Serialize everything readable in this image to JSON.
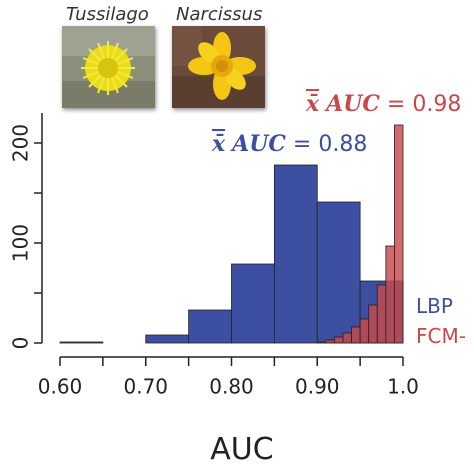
{
  "photos": [
    {
      "label": "Tussilago",
      "icon": "tussilago-flower-photo",
      "color": "#f2e21e"
    },
    {
      "label": "Narcissus",
      "icon": "narcissus-flower-photo",
      "color": "#f1c40f"
    }
  ],
  "annotations": {
    "lbp_mean": {
      "symbol": "x̄",
      "metric": "AUC",
      "equals": "=",
      "value": "0.88",
      "color": "#3c4fa0"
    },
    "fcm_mean": {
      "symbol": "x̄",
      "metric": "AUC",
      "equals": "=",
      "value": "0.98",
      "color": "#c8494a"
    }
  },
  "legend": [
    {
      "label": "LBP",
      "color": "#3c4fa0"
    },
    {
      "label": "FCM-",
      "color": "#c8494a"
    }
  ],
  "chart_data": {
    "type": "bar",
    "xlabel": "AUC",
    "ylabel": "",
    "xlim": [
      0.6,
      1.0
    ],
    "ylim": [
      0,
      230
    ],
    "x_ticks": [
      "0.60",
      "0.70",
      "0.80",
      "0.90",
      "1.0"
    ],
    "y_ticks": [
      "0",
      "100",
      "200"
    ],
    "series": [
      {
        "name": "LBP",
        "color": "#3c4fa0",
        "bin_starts": [
          0.6,
          0.65,
          0.7,
          0.75,
          0.8,
          0.85,
          0.9,
          0.95
        ],
        "bin_width": 0.05,
        "values": [
          1,
          0,
          8,
          33,
          79,
          178,
          141,
          62
        ]
      },
      {
        "name": "FCM-",
        "color": "#c8494a",
        "bin_starts": [
          0.9,
          0.91,
          0.92,
          0.93,
          0.94,
          0.95,
          0.96,
          0.97,
          0.98,
          0.99
        ],
        "bin_width": 0.01,
        "values": [
          1,
          3,
          6,
          10,
          16,
          24,
          38,
          58,
          97,
          218
        ]
      }
    ]
  }
}
